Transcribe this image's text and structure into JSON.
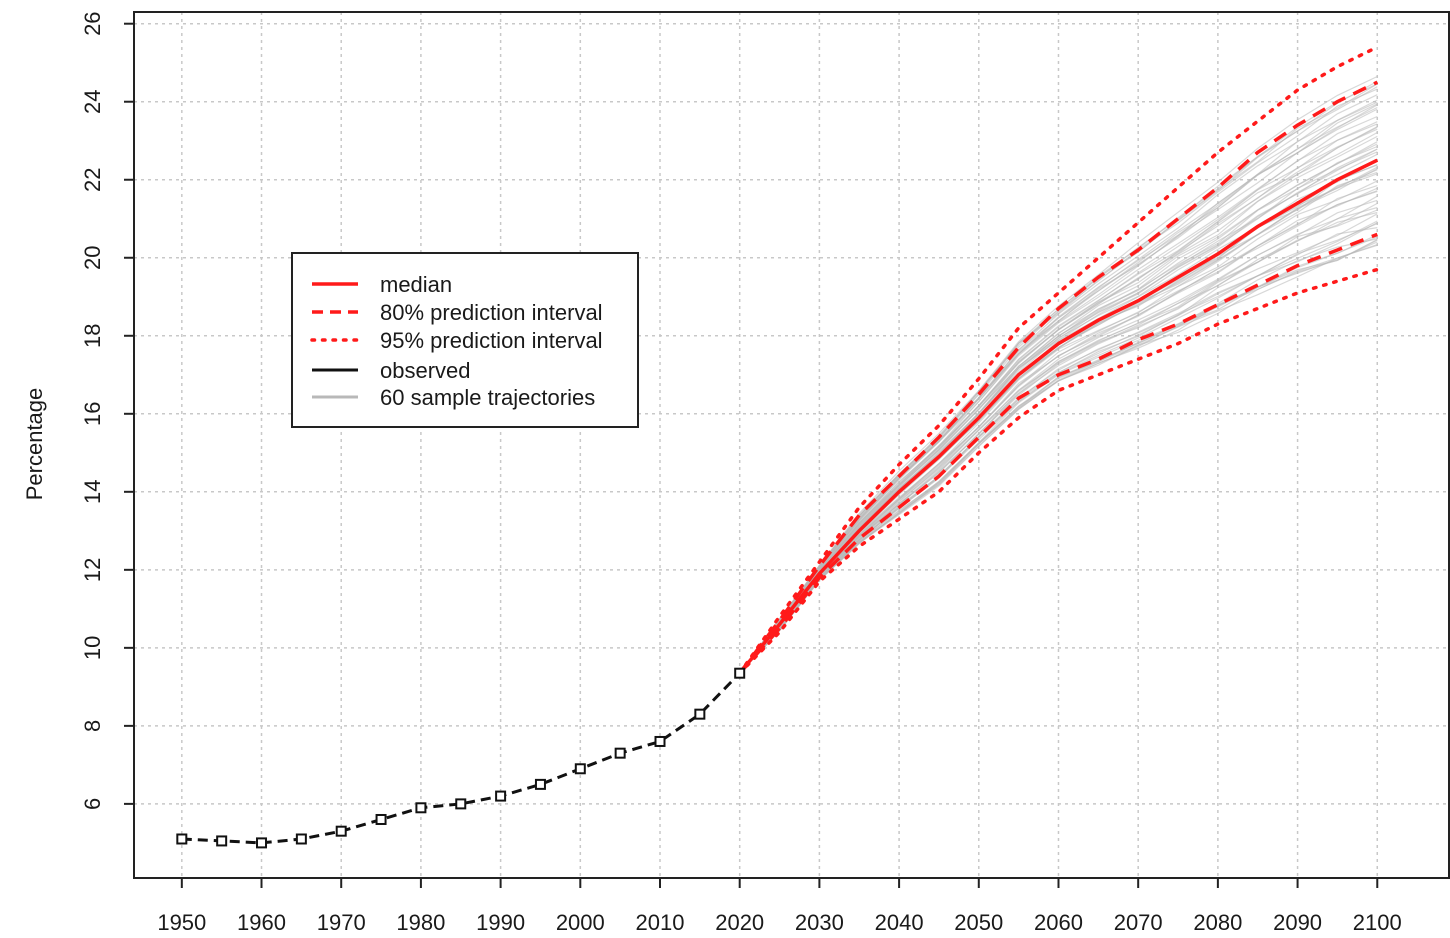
{
  "chart_data": {
    "type": "line",
    "title": "",
    "xlabel": "",
    "ylabel": "Percentage",
    "xlim": [
      1944,
      2109
    ],
    "ylim": [
      4.1,
      26.3
    ],
    "x_ticks": [
      1950,
      1960,
      1970,
      1980,
      1990,
      2000,
      2010,
      2020,
      2030,
      2040,
      2050,
      2060,
      2070,
      2080,
      2090,
      2100
    ],
    "y_ticks": [
      6,
      8,
      10,
      12,
      14,
      16,
      18,
      20,
      22,
      24,
      26
    ],
    "grid": true,
    "legend_position": "upper-left",
    "colors": {
      "median": "#ff1a1a",
      "pi80": "#ff1a1a",
      "pi95": "#ff1a1a",
      "observed": "#111111",
      "trajectories": "#b8b8b8",
      "grid": "#c8c8c8"
    },
    "series": [
      {
        "name": "observed",
        "style": "dashed-with-square-markers",
        "x": [
          1950,
          1955,
          1960,
          1965,
          1970,
          1975,
          1980,
          1985,
          1990,
          1995,
          2000,
          2005,
          2010,
          2015,
          2020
        ],
        "y": [
          5.1,
          5.05,
          5.0,
          5.1,
          5.3,
          5.6,
          5.9,
          6.0,
          6.2,
          6.5,
          6.9,
          7.3,
          7.6,
          8.3,
          9.35
        ]
      },
      {
        "name": "median",
        "style": "solid",
        "x": [
          2020,
          2025,
          2030,
          2035,
          2040,
          2045,
          2050,
          2055,
          2060,
          2065,
          2070,
          2075,
          2080,
          2085,
          2090,
          2095,
          2100
        ],
        "y": [
          9.35,
          10.6,
          11.9,
          13.0,
          14.0,
          14.9,
          15.9,
          17.0,
          17.8,
          18.4,
          18.9,
          19.5,
          20.1,
          20.8,
          21.4,
          22.0,
          22.5
        ]
      },
      {
        "name": "80% prediction interval",
        "style": "dashed",
        "upper": {
          "x": [
            2020,
            2025,
            2030,
            2035,
            2040,
            2045,
            2050,
            2055,
            2060,
            2065,
            2070,
            2075,
            2080,
            2085,
            2090,
            2095,
            2100
          ],
          "y": [
            9.35,
            10.7,
            12.1,
            13.4,
            14.4,
            15.4,
            16.5,
            17.7,
            18.7,
            19.5,
            20.2,
            21.0,
            21.8,
            22.7,
            23.4,
            24.0,
            24.5
          ]
        },
        "lower": {
          "x": [
            2020,
            2025,
            2030,
            2035,
            2040,
            2045,
            2050,
            2055,
            2060,
            2065,
            2070,
            2075,
            2080,
            2085,
            2090,
            2095,
            2100
          ],
          "y": [
            9.35,
            10.5,
            11.8,
            12.8,
            13.6,
            14.4,
            15.4,
            16.4,
            17.0,
            17.4,
            17.9,
            18.3,
            18.8,
            19.3,
            19.8,
            20.2,
            20.6
          ]
        }
      },
      {
        "name": "95% prediction interval",
        "style": "dotted",
        "upper": {
          "x": [
            2020,
            2025,
            2030,
            2035,
            2040,
            2045,
            2050,
            2055,
            2060,
            2065,
            2070,
            2075,
            2080,
            2085,
            2090,
            2095,
            2100
          ],
          "y": [
            9.35,
            10.8,
            12.2,
            13.6,
            14.7,
            15.7,
            16.9,
            18.2,
            19.1,
            20.0,
            20.9,
            21.8,
            22.7,
            23.5,
            24.3,
            24.9,
            25.4
          ]
        },
        "lower": {
          "x": [
            2020,
            2025,
            2030,
            2035,
            2040,
            2045,
            2050,
            2055,
            2060,
            2065,
            2070,
            2075,
            2080,
            2085,
            2090,
            2095,
            2100
          ],
          "y": [
            9.35,
            10.4,
            11.7,
            12.6,
            13.3,
            14.0,
            15.0,
            15.9,
            16.6,
            17.0,
            17.4,
            17.8,
            18.3,
            18.7,
            19.1,
            19.4,
            19.7
          ]
        }
      },
      {
        "name": "60 sample trajectories",
        "style": "thin-solid",
        "count": 60
      }
    ]
  }
}
